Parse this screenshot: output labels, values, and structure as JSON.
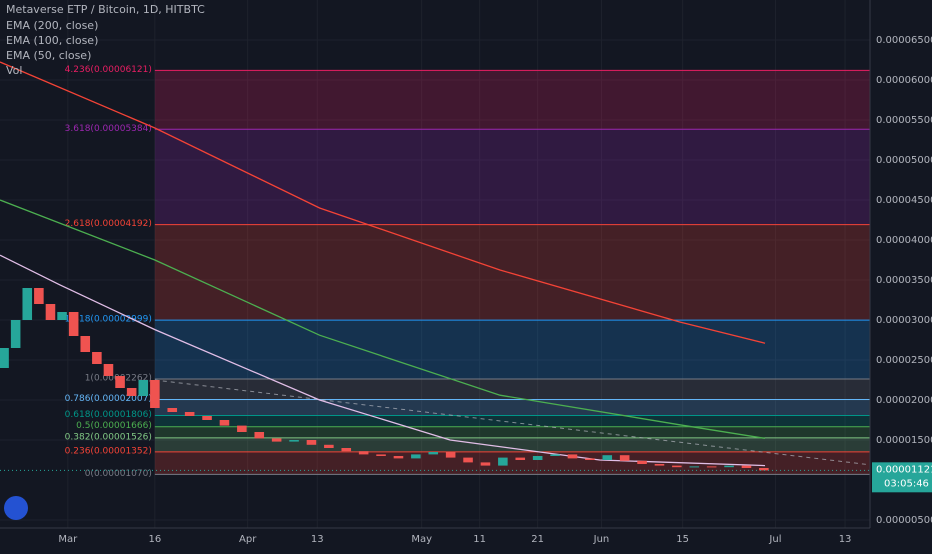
{
  "chart_data": {
    "type": "candlestick",
    "title": "Metaverse ETP / Bitcoin, 1D, HITBTC",
    "indicators": [
      "Vol"
    ],
    "xlim": [
      -11.7,
      138.3
    ],
    "xticks": [
      {
        "value": 0,
        "label": "Mar"
      },
      {
        "value": 15,
        "label": "16"
      },
      {
        "value": 31,
        "label": "Apr"
      },
      {
        "value": 43,
        "label": "13"
      },
      {
        "value": 61,
        "label": "May"
      },
      {
        "value": 71,
        "label": "11"
      },
      {
        "value": 81,
        "label": "21"
      },
      {
        "value": 92,
        "label": "Jun"
      },
      {
        "value": 106,
        "label": "15"
      },
      {
        "value": 122,
        "label": "Jul"
      },
      {
        "value": 134,
        "label": "13"
      }
    ],
    "ylim": [
      4e-06,
      7e-05
    ],
    "yticks": [
      {
        "value": 6.5e-05,
        "label": "0.00006500"
      },
      {
        "value": 6e-05,
        "label": "0.00006000"
      },
      {
        "value": 5.5e-05,
        "label": "0.00005500"
      },
      {
        "value": 5e-05,
        "label": "0.00005000"
      },
      {
        "value": 4.5e-05,
        "label": "0.00004500"
      },
      {
        "value": 4e-05,
        "label": "0.00004000"
      },
      {
        "value": 3.5e-05,
        "label": "0.00003500"
      },
      {
        "value": 3e-05,
        "label": "0.00003000"
      },
      {
        "value": 2.5e-05,
        "label": "0.00002500"
      },
      {
        "value": 2e-05,
        "label": "0.00002000"
      },
      {
        "value": 1.5e-05,
        "label": "0.00001500"
      },
      {
        "value": 5e-06,
        "label": "0.00000500"
      }
    ],
    "grid": true,
    "up_color": "#26a69a",
    "down_color": "#ef5350",
    "candles": {
      "x": [
        -11,
        -9,
        -7,
        -5,
        -3,
        -1,
        1,
        3,
        5,
        7,
        9,
        11,
        13,
        15,
        18,
        21,
        24,
        27,
        30,
        33,
        36,
        39,
        42,
        45,
        48,
        51,
        54,
        57,
        60,
        63,
        66,
        69,
        72,
        75,
        78,
        81,
        84,
        87,
        90,
        93,
        96,
        99,
        102,
        105,
        108,
        111,
        114,
        117,
        120
      ],
      "open": [
        2.4e-05,
        2.65e-05,
        3e-05,
        3.4e-05,
        3.2e-05,
        3e-05,
        3.1e-05,
        2.8e-05,
        2.6e-05,
        2.45e-05,
        2.3e-05,
        2.15e-05,
        2.05e-05,
        2.25e-05,
        1.9e-05,
        1.85e-05,
        1.8e-05,
        1.75e-05,
        1.68e-05,
        1.6e-05,
        1.52e-05,
        1.48e-05,
        1.5e-05,
        1.44e-05,
        1.4e-05,
        1.36e-05,
        1.32e-05,
        1.3e-05,
        1.27e-05,
        1.32e-05,
        1.35e-05,
        1.28e-05,
        1.22e-05,
        1.18e-05,
        1.28e-05,
        1.25e-05,
        1.3e-05,
        1.32e-05,
        1.27e-05,
        1.25e-05,
        1.31e-05,
        1.24e-05,
        1.2e-05,
        1.18e-05,
        1.16e-05,
        1.17e-05,
        1.16e-05,
        1.18e-05,
        1.15e-05
      ],
      "close": [
        2.65e-05,
        3e-05,
        3.4e-05,
        3.2e-05,
        3e-05,
        3.1e-05,
        2.8e-05,
        2.6e-05,
        2.45e-05,
        2.3e-05,
        2.15e-05,
        2.05e-05,
        2.25e-05,
        1.9e-05,
        1.85e-05,
        1.8e-05,
        1.75e-05,
        1.68e-05,
        1.6e-05,
        1.52e-05,
        1.48e-05,
        1.5e-05,
        1.44e-05,
        1.4e-05,
        1.36e-05,
        1.32e-05,
        1.3e-05,
        1.27e-05,
        1.32e-05,
        1.35e-05,
        1.28e-05,
        1.22e-05,
        1.18e-05,
        1.28e-05,
        1.25e-05,
        1.3e-05,
        1.32e-05,
        1.27e-05,
        1.25e-05,
        1.31e-05,
        1.24e-05,
        1.2e-05,
        1.18e-05,
        1.16e-05,
        1.17e-05,
        1.16e-05,
        1.18e-05,
        1.15e-05,
        1.12e-05
      ]
    },
    "series": [
      {
        "name": "EMA (200, close)",
        "color": "#f44336",
        "x": [
          -11.7,
          15,
          43.4,
          74.5,
          105.5,
          120.2
        ],
        "values": [
          6.225e-05,
          5.4e-05,
          4.4e-05,
          3.625e-05,
          2.975e-05,
          2.71e-05
        ]
      },
      {
        "name": "EMA (100, close)",
        "color": "#4caf50",
        "x": [
          -11.7,
          15,
          43.4,
          74.5,
          105.5,
          120.2
        ],
        "values": [
          4.5e-05,
          3.75e-05,
          2.81e-05,
          2.06e-05,
          1.69e-05,
          1.52e-05
        ]
      },
      {
        "name": "EMA (50, close)",
        "color": "#e1bee7",
        "x": [
          -11.7,
          -1.4,
          15,
          43.4,
          65.9,
          91.7,
          120.2
        ],
        "values": [
          3.81e-05,
          3.44e-05,
          2.88e-05,
          2e-05,
          1.5e-05,
          1.25e-05,
          1.18e-05
        ]
      }
    ],
    "trendline": {
      "x": [
        15,
        138.3
      ],
      "values": [
        2.25e-05,
        1.19e-05
      ]
    },
    "fib_start": 15,
    "fib_levels": [
      {
        "label": "4.236(0.00006121)",
        "value": 6.121e-05,
        "color": "#e91e63"
      },
      {
        "label": "3.618(0.00005384)",
        "value": 5.384e-05,
        "color": "#9c27b0"
      },
      {
        "label": "2.618(0.00004192)",
        "value": 4.192e-05,
        "color": "#f44336"
      },
      {
        "label": "1.618(0.00002999)",
        "value": 2.999e-05,
        "color": "#2196f3"
      },
      {
        "label": "1(0.00002262)",
        "value": 2.262e-05,
        "color": "#787b86"
      },
      {
        "label": "0.786(0.00002007)",
        "value": 2.007e-05,
        "color": "#64b5f6"
      },
      {
        "label": "0.618(0.00001806)",
        "value": 1.806e-05,
        "color": "#009688"
      },
      {
        "label": "0.5(0.00001666)",
        "value": 1.666e-05,
        "color": "#4caf50"
      },
      {
        "label": "0.382(0.00001526)",
        "value": 1.526e-05,
        "color": "#81c784"
      },
      {
        "label": "0.236(0.00001352)",
        "value": 1.352e-05,
        "color": "#f44336"
      },
      {
        "label": "0(0.00001070)",
        "value": 1.07e-05,
        "color": "#787b86"
      }
    ],
    "last_price": 1.121e-05,
    "countdown": "03:05:46"
  }
}
